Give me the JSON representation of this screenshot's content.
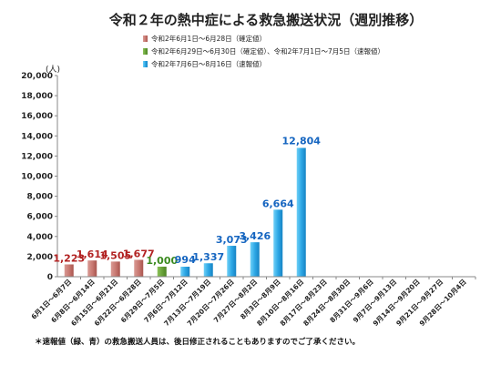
{
  "chart_data": {
    "type": "bar",
    "title": "令和２年の熱中症による救急搬送状況（週別推移）",
    "unit_label": "(人)",
    "ylim": [
      0,
      20000
    ],
    "yticks": [
      0,
      2000,
      4000,
      6000,
      8000,
      10000,
      12000,
      14000,
      16000,
      18000,
      20000
    ],
    "ytick_labels": [
      "0",
      "2,000",
      "4,000",
      "6,000",
      "8,000",
      "10,000",
      "12,000",
      "14,000",
      "16,000",
      "18,000",
      "20,000"
    ],
    "categories": [
      "6月1日〜6月7日",
      "6月8日〜6月14日",
      "6月15日〜6月21日",
      "6月22日〜6月28日",
      "6月29日〜7月5日",
      "7月6日〜7月12日",
      "7月13日〜7月19日",
      "7月20日〜7月26日",
      "7月27日〜8月2日",
      "8月3日〜8月9日",
      "8月10日〜8月16日",
      "8月17日〜8月23日",
      "8月24日〜8月30日",
      "8月31日〜9月6日",
      "9月7日〜9月13日",
      "9月14日〜9月20日",
      "9月21日〜9月27日",
      "9月28日〜10月4日"
    ],
    "values": [
      1223,
      1614,
      1505,
      1677,
      1000,
      994,
      1337,
      3073,
      3426,
      6664,
      12804,
      null,
      null,
      null,
      null,
      null,
      null,
      null
    ],
    "value_labels": [
      "1,223",
      "1,614",
      "1,505",
      "1,677",
      "1,000",
      "994",
      "1,337",
      "3,073",
      "3,426",
      "6,664",
      "12,804",
      "",
      "",
      "",
      "",
      "",
      "",
      ""
    ],
    "groups": [
      "confirmed",
      "confirmed",
      "confirmed",
      "confirmed",
      "mixed",
      "prelim",
      "prelim",
      "prelim",
      "prelim",
      "prelim",
      "prelim",
      null,
      null,
      null,
      null,
      null,
      null,
      null
    ],
    "legend": [
      {
        "key": "confirmed",
        "label": "令和2年6月1日〜6月28日（確定値）",
        "color": "#c97a73",
        "label_color": "#b22222"
      },
      {
        "key": "mixed",
        "label": "令和2年6月29日〜6月30日（確定値）、令和2年7月1日〜7月5日（速報値）",
        "color": "#6aa33a",
        "label_color": "#3a8a1e"
      },
      {
        "key": "prelim",
        "label": "令和2年7月6日〜8月16日（速報値）",
        "color": "#2ea8e6",
        "label_color": "#1565c0"
      }
    ],
    "legend_position": "top-left",
    "grid": false
  },
  "footnote": "＊速報値（緑、青）の救急搬送人員は、後日修正されることもありますのでご了承ください。"
}
